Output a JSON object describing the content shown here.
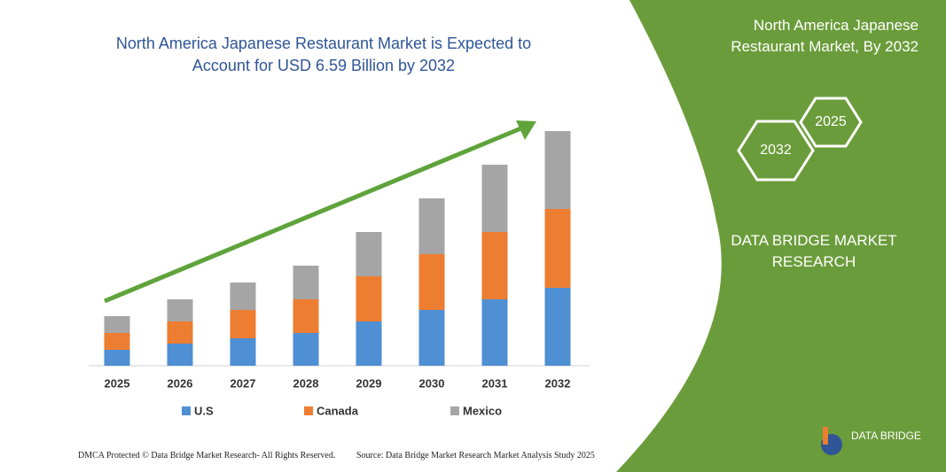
{
  "chart_data": {
    "type": "stacked_bar",
    "title": "North America Japanese Restaurant Market is Expected to Account for USD 6.59 Billion by 2032",
    "categories": [
      "2025",
      "2026",
      "2027",
      "2028",
      "2029",
      "2030",
      "2031",
      "2032"
    ],
    "series": [
      {
        "name": "U.S",
        "color": "#4f8fd3",
        "values": [
          18,
          25,
          31,
          37,
          50,
          63,
          75,
          88
        ]
      },
      {
        "name": "Canada",
        "color": "#ed7d31",
        "values": [
          19,
          25,
          32,
          38,
          51,
          63,
          76,
          89
        ]
      },
      {
        "name": "Mexico",
        "color": "#a5a5a5",
        "values": [
          19,
          25,
          31,
          38,
          50,
          63,
          76,
          88
        ]
      }
    ]
  },
  "panel": {
    "title": "North America Japanese Restaurant Market, By 2032",
    "hex_small": "2025",
    "hex_large": "2032",
    "brand": "DATA BRIDGE MARKET RESEARCH"
  },
  "logo": {
    "text": "DATA BRIDGE"
  },
  "footer": {
    "rights": "DMCA Protected © Data Bridge Market Research- All Rights Reserved.",
    "source": "Source: Data Bridge Market Research  Market Analysis Study 2025"
  }
}
